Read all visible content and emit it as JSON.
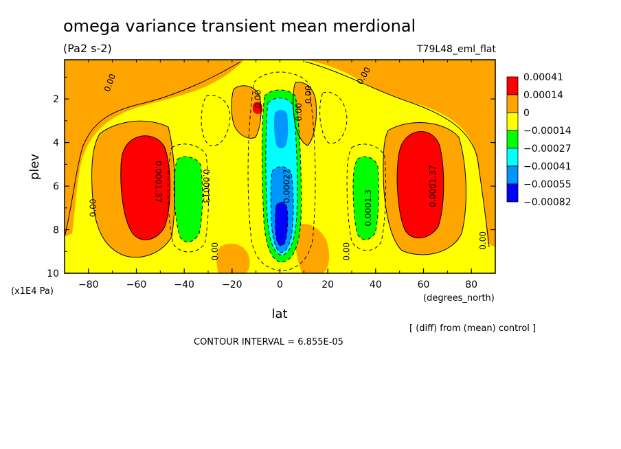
{
  "chart_data": {
    "type": "contour",
    "title": "omega variance transient mean merdional",
    "units": "(Pa2 s-2)",
    "run_label": "T79L48_eml_flat",
    "xlabel": "lat",
    "xunits": "(degrees_north)",
    "ylabel": "plev",
    "yunits": "(x1E4 Pa)",
    "xlim": [
      -90,
      90
    ],
    "ylim": [
      10,
      0.2
    ],
    "xticks": [
      -80,
      -60,
      -40,
      -20,
      0,
      20,
      40,
      60,
      80
    ],
    "yticks": [
      2,
      4,
      6,
      8,
      10
    ],
    "tick_labels_x": [
      "−80",
      "−60",
      "−40",
      "−20",
      "0",
      "20",
      "40",
      "60",
      "80"
    ],
    "tick_labels_y": [
      "2",
      "4",
      "6",
      "8",
      "10"
    ],
    "diff_note": "[ (diff) from (mean) control ]",
    "contour_interval": "CONTOUR INTERVAL = 6.855E-05",
    "colorbar": [
      {
        "label": "0.00041",
        "color": "#ff0000"
      },
      {
        "label": "0.00014",
        "color": "#ffa500"
      },
      {
        "label": "0",
        "color": "#ffff00"
      },
      {
        "label": "−0.00014",
        "color": "#00ff00"
      },
      {
        "label": "−0.00027",
        "color": "#00ffff"
      },
      {
        "label": "−0.00041",
        "color": "#0096ff"
      },
      {
        "label": "−0.00055",
        "color": "#0000ff"
      },
      {
        "label": "−0.00082",
        "color": "#0000ff"
      }
    ],
    "contour_labels": [
      {
        "text": "0.00",
        "lat": -77,
        "plev": 7.0,
        "rot": -90
      },
      {
        "text": "0.00",
        "lat": -70,
        "plev": 1.3,
        "rot": -70
      },
      {
        "text": "0.0001.37",
        "lat": -52,
        "plev": 5.8,
        "rot": 90
      },
      {
        "text": "0.00013",
        "lat": -32,
        "plev": 6.0,
        "rot": 90
      },
      {
        "text": "0.00",
        "lat": -26,
        "plev": 9.0,
        "rot": -90
      },
      {
        "text": "0.00",
        "lat": -8,
        "plev": 2.0,
        "rot": -90
      },
      {
        "text": "0.00027",
        "lat": 4,
        "plev": 6.0,
        "rot": -90
      },
      {
        "text": "0.00",
        "lat": 9,
        "plev": 2.6,
        "rot": -90
      },
      {
        "text": "0.00",
        "lat": 13,
        "plev": 1.8,
        "rot": -90
      },
      {
        "text": "0.00",
        "lat": 29,
        "plev": 9.0,
        "rot": -90
      },
      {
        "text": "0.0001.3",
        "lat": 38,
        "plev": 7.0,
        "rot": -90
      },
      {
        "text": "0.00",
        "lat": 36,
        "plev": 1.0,
        "rot": -60
      },
      {
        "text": "0.0001.37",
        "lat": 65,
        "plev": 6.0,
        "rot": -90
      },
      {
        "text": "0.00",
        "lat": 86,
        "plev": 8.5,
        "rot": -90
      }
    ]
  }
}
